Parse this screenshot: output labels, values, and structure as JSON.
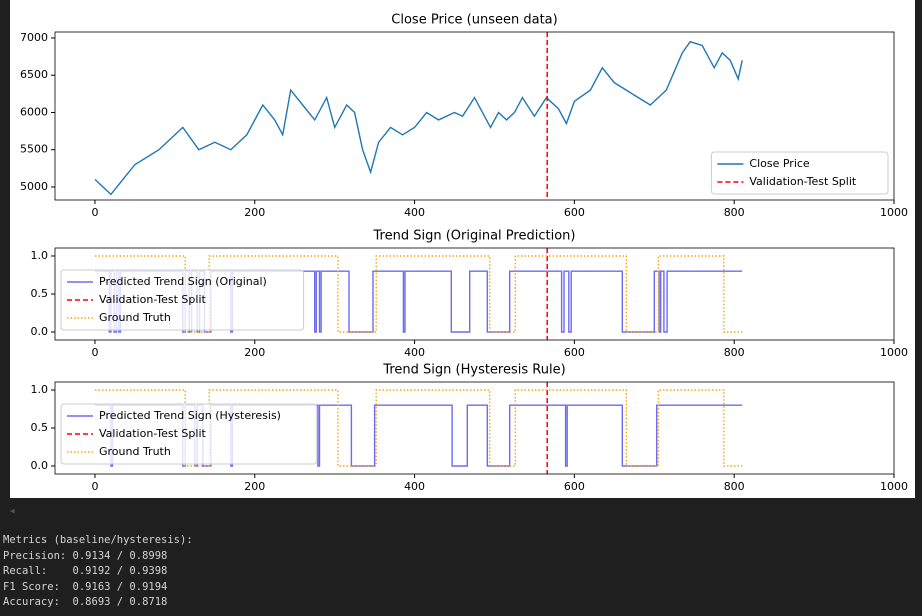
{
  "chart_data": [
    {
      "type": "line",
      "title": "Close Price (unseen data)",
      "xlim": [
        -50,
        1000
      ],
      "ylim": [
        4825,
        7080
      ],
      "xticks": [
        0,
        200,
        400,
        600,
        800,
        1000
      ],
      "yticks": [
        5000,
        5500,
        6000,
        6500,
        7000
      ],
      "legend": "lower right",
      "series": [
        {
          "name": "Close Price",
          "color": "#1f77b4",
          "linestyle": "solid",
          "x": [
            0,
            20,
            50,
            80,
            110,
            130,
            150,
            170,
            190,
            210,
            225,
            235,
            245,
            260,
            275,
            290,
            300,
            315,
            325,
            335,
            345,
            355,
            370,
            385,
            400,
            415,
            430,
            450,
            460,
            475,
            495,
            505,
            515,
            525,
            535,
            550,
            565,
            580,
            590,
            600,
            620,
            635,
            650,
            665,
            680,
            695,
            715,
            735,
            745,
            760,
            775,
            785,
            795,
            805,
            810
          ],
          "values": [
            5100,
            4900,
            5300,
            5500,
            5800,
            5500,
            5600,
            5500,
            5700,
            6100,
            5900,
            5700,
            6300,
            6100,
            5900,
            6200,
            5800,
            6100,
            6000,
            5500,
            5200,
            5600,
            5800,
            5700,
            5800,
            6000,
            5900,
            6000,
            5950,
            6200,
            5800,
            6000,
            5900,
            6000,
            6200,
            5950,
            6200,
            6050,
            5850,
            6150,
            6300,
            6600,
            6400,
            6300,
            6200,
            6100,
            6300,
            6800,
            6950,
            6900,
            6600,
            6800,
            6700,
            6450,
            6700
          ]
        },
        {
          "name": "Validation-Test Split",
          "color": "red",
          "linestyle": "dashed",
          "vline_x": 566
        }
      ]
    },
    {
      "type": "line",
      "title": "Trend Sign (Original Prediction)",
      "xlim": [
        -50,
        1000
      ],
      "ylim": [
        -0.105,
        1.105
      ],
      "xticks": [
        0,
        200,
        400,
        600,
        800,
        1000
      ],
      "yticks": [
        {
          "value": 0,
          "label": "0.0"
        },
        0.5,
        {
          "value": 1,
          "label": "1.0"
        }
      ],
      "legend": "center left",
      "series": [
        {
          "name": "Predicted Trend Sign (Original)",
          "color": "#6b6bf5",
          "linestyle": "solid",
          "x": [
            0,
            18,
            18,
            20,
            20,
            24,
            24,
            27,
            27,
            30,
            30,
            32,
            32,
            110,
            110,
            113,
            113,
            118,
            118,
            121,
            121,
            128,
            128,
            131,
            131,
            137,
            137,
            145,
            145,
            170,
            170,
            172,
            172,
            275,
            275,
            277,
            277,
            281,
            281,
            283,
            283,
            318,
            318,
            348,
            348,
            386,
            386,
            388,
            388,
            446,
            446,
            469,
            469,
            491,
            491,
            519,
            519,
            584,
            584,
            587,
            587,
            593,
            593,
            596,
            596,
            660,
            660,
            700,
            700,
            706,
            706,
            708,
            708,
            712,
            712,
            716,
            716,
            810
          ],
          "values": [
            0.8,
            0.8,
            0,
            0,
            0.8,
            0.8,
            0,
            0,
            0.8,
            0.8,
            0,
            0,
            0.8,
            0.8,
            0,
            0,
            0.8,
            0.8,
            0,
            0,
            0.8,
            0.8,
            0,
            0,
            0.8,
            0.8,
            0,
            0,
            0.8,
            0.8,
            0,
            0,
            0.8,
            0.8,
            0,
            0,
            0.8,
            0.8,
            0,
            0,
            0.8,
            0.8,
            0,
            0,
            0.8,
            0.8,
            0,
            0,
            0.8,
            0.8,
            0,
            0,
            0.8,
            0.8,
            0,
            0,
            0.8,
            0.8,
            0,
            0,
            0.8,
            0.8,
            0,
            0,
            0.8,
            0.8,
            0,
            0,
            0.8,
            0.8,
            0,
            0,
            0.8,
            0.8,
            0,
            0,
            0.8,
            0.8
          ]
        },
        {
          "name": "Validation-Test Split",
          "color": "red",
          "linestyle": "dashed",
          "vline_x": 566
        },
        {
          "name": "Ground Truth",
          "color": "orange",
          "linestyle": "dotted",
          "x": [
            0,
            113,
            113,
            143,
            143,
            304,
            304,
            352,
            352,
            494,
            494,
            526,
            526,
            665,
            665,
            705,
            705,
            787,
            787,
            810
          ],
          "values": [
            1,
            1,
            0,
            0,
            1,
            1,
            0,
            0,
            1,
            1,
            0,
            0,
            1,
            1,
            0,
            0,
            1,
            1,
            0,
            0
          ]
        }
      ]
    },
    {
      "type": "line",
      "title": "Trend Sign (Hysteresis Rule)",
      "xlim": [
        -50,
        1000
      ],
      "ylim": [
        -0.105,
        1.105
      ],
      "xticks": [
        0,
        200,
        400,
        600,
        800,
        1000
      ],
      "yticks": [
        {
          "value": 0,
          "label": "0.0"
        },
        0.5,
        {
          "value": 1,
          "label": "1.0"
        }
      ],
      "legend": "center left",
      "series": [
        {
          "name": "Predicted Trend Sign (Hysteresis)",
          "color": "#6b6bf5",
          "linestyle": "solid",
          "x": [
            0,
            20,
            20,
            22,
            22,
            110,
            110,
            113,
            113,
            125,
            125,
            128,
            128,
            135,
            135,
            145,
            145,
            170,
            170,
            172,
            172,
            279,
            279,
            281,
            281,
            321,
            321,
            350,
            350,
            447,
            447,
            466,
            466,
            491,
            491,
            519,
            519,
            589,
            589,
            591,
            591,
            660,
            660,
            703,
            703,
            810
          ],
          "values": [
            0.8,
            0.8,
            0,
            0,
            0.8,
            0.8,
            0,
            0,
            0.8,
            0.8,
            0,
            0,
            0.8,
            0.8,
            0,
            0,
            0.8,
            0.8,
            0,
            0,
            0.8,
            0.8,
            0,
            0,
            0.8,
            0.8,
            0,
            0,
            0.8,
            0.8,
            0,
            0,
            0.8,
            0.8,
            0,
            0,
            0.8,
            0.8,
            0,
            0,
            0.8,
            0.8,
            0,
            0,
            0.8,
            0.8
          ]
        },
        {
          "name": "Validation-Test Split",
          "color": "red",
          "linestyle": "dashed",
          "vline_x": 566
        },
        {
          "name": "Ground Truth",
          "color": "orange",
          "linestyle": "dotted",
          "x": [
            0,
            113,
            113,
            143,
            143,
            304,
            304,
            352,
            352,
            494,
            494,
            526,
            526,
            665,
            665,
            705,
            705,
            787,
            787,
            810
          ],
          "values": [
            1,
            1,
            0,
            0,
            1,
            1,
            0,
            0,
            1,
            1,
            0,
            0,
            1,
            1,
            0,
            0,
            1,
            1,
            0,
            0
          ]
        }
      ]
    }
  ],
  "console": {
    "lines": [
      "Metrics (baseline/hysteresis):",
      "Precision: 0.9134 / 0.8998",
      "Recall:    0.9192 / 0.9398",
      "F1 Score:  0.9163 / 0.9194",
      "Accuracy:  0.8693 / 0.8718"
    ]
  }
}
